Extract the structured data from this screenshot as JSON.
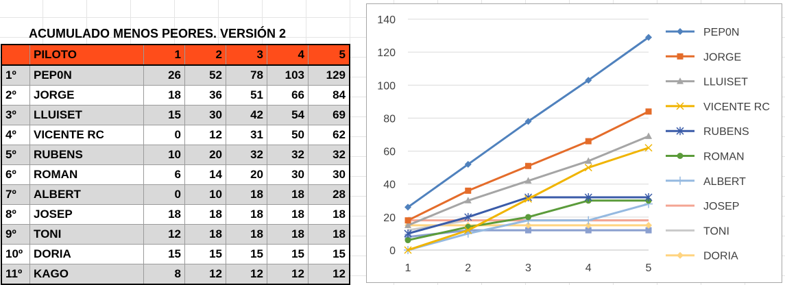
{
  "sheet": {
    "title": "ACUMULADO MENOS PEORES. VERSIÓN 2",
    "headers": [
      "",
      "PILOTO",
      "1",
      "2",
      "3",
      "4",
      "5"
    ],
    "rows": [
      {
        "pos": "1º",
        "name": "PEP0N",
        "vals": [
          "26",
          "52",
          "78",
          "103",
          "129"
        ]
      },
      {
        "pos": "2º",
        "name": "JORGE",
        "vals": [
          "18",
          "36",
          "51",
          "66",
          "84"
        ]
      },
      {
        "pos": "3º",
        "name": "LLUISET",
        "vals": [
          "15",
          "30",
          "42",
          "54",
          "69"
        ]
      },
      {
        "pos": "4º",
        "name": "VICENTE RC",
        "vals": [
          "0",
          "12",
          "31",
          "50",
          "62"
        ]
      },
      {
        "pos": "5º",
        "name": "RUBENS",
        "vals": [
          "10",
          "20",
          "32",
          "32",
          "32"
        ]
      },
      {
        "pos": "6º",
        "name": "ROMAN",
        "vals": [
          "6",
          "14",
          "20",
          "30",
          "30"
        ]
      },
      {
        "pos": "7º",
        "name": "ALBERT",
        "vals": [
          "0",
          "10",
          "18",
          "18",
          "28"
        ]
      },
      {
        "pos": "8º",
        "name": "JOSEP",
        "vals": [
          "18",
          "18",
          "18",
          "18",
          "18"
        ]
      },
      {
        "pos": "9º",
        "name": "TONI",
        "vals": [
          "12",
          "18",
          "18",
          "18",
          "18"
        ]
      },
      {
        "pos": "10º",
        "name": "DORIA",
        "vals": [
          "15",
          "15",
          "15",
          "15",
          "15"
        ]
      },
      {
        "pos": "11º",
        "name": "KAGO",
        "vals": [
          "8",
          "12",
          "12",
          "12",
          "12"
        ]
      }
    ],
    "colors": {
      "header": "#ff4d1a",
      "shade": "#d9d9d9"
    }
  },
  "chart_data": {
    "type": "line",
    "x": [
      1,
      2,
      3,
      4,
      5
    ],
    "ylim": [
      0,
      140
    ],
    "yticks": [
      0,
      20,
      40,
      60,
      80,
      100,
      120,
      140
    ],
    "grid": "horizontal",
    "legend": "right",
    "series": [
      {
        "name": "PEP0N",
        "values": [
          26,
          52,
          78,
          103,
          129
        ],
        "color": "#4f81bd",
        "marker": "diamond"
      },
      {
        "name": "JORGE",
        "values": [
          18,
          36,
          51,
          66,
          84
        ],
        "color": "#e46c2a",
        "marker": "square"
      },
      {
        "name": "LLUISET",
        "values": [
          15,
          30,
          42,
          54,
          69
        ],
        "color": "#a5a5a5",
        "marker": "triangle"
      },
      {
        "name": "VICENTE RC",
        "values": [
          0,
          12,
          31,
          50,
          62
        ],
        "color": "#f0b400",
        "marker": "x"
      },
      {
        "name": "RUBENS",
        "values": [
          10,
          20,
          32,
          32,
          32
        ],
        "color": "#3a5ba8",
        "marker": "star"
      },
      {
        "name": "ROMAN",
        "values": [
          6,
          14,
          20,
          30,
          30
        ],
        "color": "#5b9b3a",
        "marker": "circle"
      },
      {
        "name": "ALBERT",
        "values": [
          0,
          10,
          18,
          18,
          28
        ],
        "color": "#95b9e0",
        "marker": "plus"
      },
      {
        "name": "JOSEP",
        "values": [
          18,
          18,
          18,
          18,
          18
        ],
        "color": "#f4a593",
        "marker": "none"
      },
      {
        "name": "TONI",
        "values": [
          12,
          18,
          18,
          18,
          18
        ],
        "color": "#c9c9c9",
        "marker": "none"
      },
      {
        "name": "DORIA",
        "values": [
          15,
          15,
          15,
          15,
          15
        ],
        "color": "#ffd480",
        "marker": "diamond"
      },
      {
        "name": "KAGO",
        "values": [
          8,
          12,
          12,
          12,
          12
        ],
        "color": "#8a9fcf",
        "marker": "square"
      }
    ]
  }
}
